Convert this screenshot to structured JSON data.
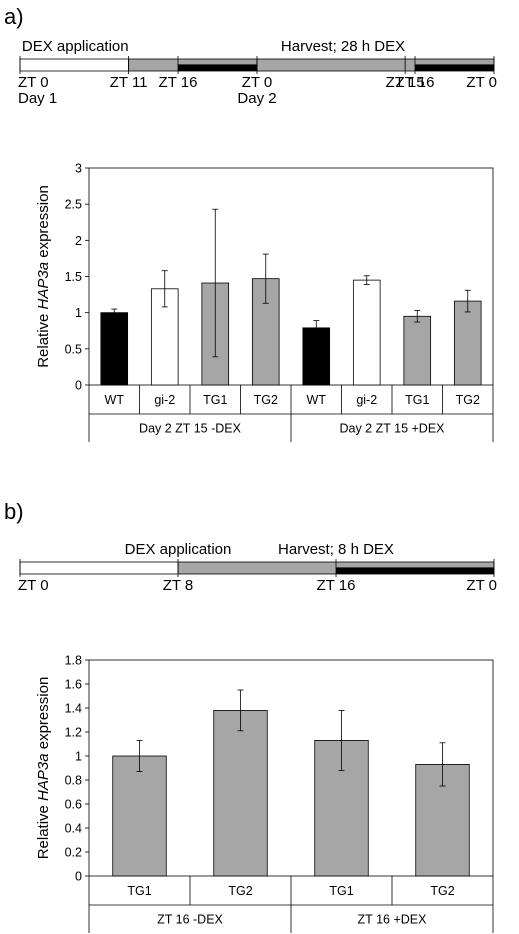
{
  "panels": [
    {
      "label": "a)",
      "timeline": {
        "span": [
          0,
          48
        ],
        "segments": [
          {
            "from": 0,
            "to": 11,
            "fill": "#ffffff"
          },
          {
            "from": 11,
            "to": 24,
            "fill": "#a6a6a6"
          },
          {
            "from": 24,
            "to": 48,
            "fill": "#a6a6a6"
          }
        ],
        "night_bars": [
          [
            16,
            24
          ],
          [
            40,
            48
          ]
        ],
        "markers": [
          {
            "t": 0,
            "lines": [
              "ZT 0",
              "Day 1"
            ]
          },
          {
            "t": 11,
            "lines": [
              "ZT 11"
            ]
          },
          {
            "t": 16,
            "lines": [
              "ZT 16"
            ]
          },
          {
            "t": 24,
            "lines": [
              "ZT 0",
              "Day 2"
            ]
          },
          {
            "t": 39,
            "lines": [
              "ZT 15"
            ]
          },
          {
            "t": 40,
            "lines": [
              "ZT 16"
            ]
          },
          {
            "t": 48,
            "lines": [
              "ZT 0"
            ]
          }
        ],
        "events": [
          {
            "t": 11,
            "text": "DEX application",
            "align": "end"
          },
          {
            "t": 39,
            "text": "Harvest; 28 h DEX",
            "align": "end"
          }
        ]
      }
    },
    {
      "label": "b)",
      "timeline": {
        "span": [
          0,
          24
        ],
        "segments": [
          {
            "from": 0,
            "to": 8,
            "fill": "#ffffff"
          },
          {
            "from": 8,
            "to": 24,
            "fill": "#a6a6a6"
          }
        ],
        "night_bars": [
          [
            16,
            24
          ]
        ],
        "markers": [
          {
            "t": 0,
            "lines": [
              "ZT 0"
            ]
          },
          {
            "t": 8,
            "lines": [
              "ZT 8"
            ]
          },
          {
            "t": 16,
            "lines": [
              "ZT 16"
            ]
          },
          {
            "t": 24,
            "lines": [
              "ZT 0"
            ]
          }
        ],
        "events": [
          {
            "t": 8,
            "text": "DEX application",
            "align": "middle"
          },
          {
            "t": 16,
            "text": "Harvest; 8 h DEX",
            "align": "middle"
          }
        ]
      }
    }
  ],
  "chart_data": [
    {
      "type": "bar",
      "ylabel_prefix": "Relative ",
      "ylabel_italic": "HAP3a",
      "ylabel_suffix": " expression",
      "ylim": [
        0,
        3
      ],
      "yticks": [
        "0",
        "0.5",
        "1",
        "1.5",
        "2",
        "2.5",
        "3"
      ],
      "tick_step": 0.5,
      "grid": false,
      "categories": [
        "WT",
        "gi-2",
        "TG1",
        "TG2",
        "WT",
        "gi-2",
        "TG1",
        "TG2"
      ],
      "groups": [
        {
          "label": "Day 2 ZT 15 -DEX",
          "count": 4
        },
        {
          "label": "Day 2 ZT 15 +DEX",
          "count": 4
        }
      ],
      "values": [
        1.0,
        1.33,
        1.41,
        1.47,
        0.79,
        1.45,
        0.95,
        1.16
      ],
      "error": [
        0.05,
        0.25,
        1.02,
        0.34,
        0.1,
        0.06,
        0.08,
        0.15
      ],
      "colors": [
        "#000000",
        "#ffffff",
        "#a6a6a6",
        "#a6a6a6",
        "#000000",
        "#ffffff",
        "#a6a6a6",
        "#a6a6a6"
      ]
    },
    {
      "type": "bar",
      "ylabel_prefix": "Relative ",
      "ylabel_italic": "HAP3a",
      "ylabel_suffix": " expression",
      "ylim": [
        0,
        1.8
      ],
      "yticks": [
        "0",
        "0.2",
        "0.4",
        "0.6",
        "0.8",
        "1",
        "1.2",
        "1.4",
        "1.6",
        "1.8"
      ],
      "tick_step": 0.2,
      "grid": false,
      "categories": [
        "TG1",
        "TG2",
        "TG1",
        "TG2"
      ],
      "groups": [
        {
          "label": "ZT 16 -DEX",
          "count": 2
        },
        {
          "label": "ZT 16 +DEX",
          "count": 2
        }
      ],
      "values": [
        1.0,
        1.38,
        1.13,
        0.93
      ],
      "error": [
        0.13,
        0.17,
        0.25,
        0.18
      ],
      "colors": [
        "#a6a6a6",
        "#a6a6a6",
        "#a6a6a6",
        "#a6a6a6"
      ]
    }
  ]
}
